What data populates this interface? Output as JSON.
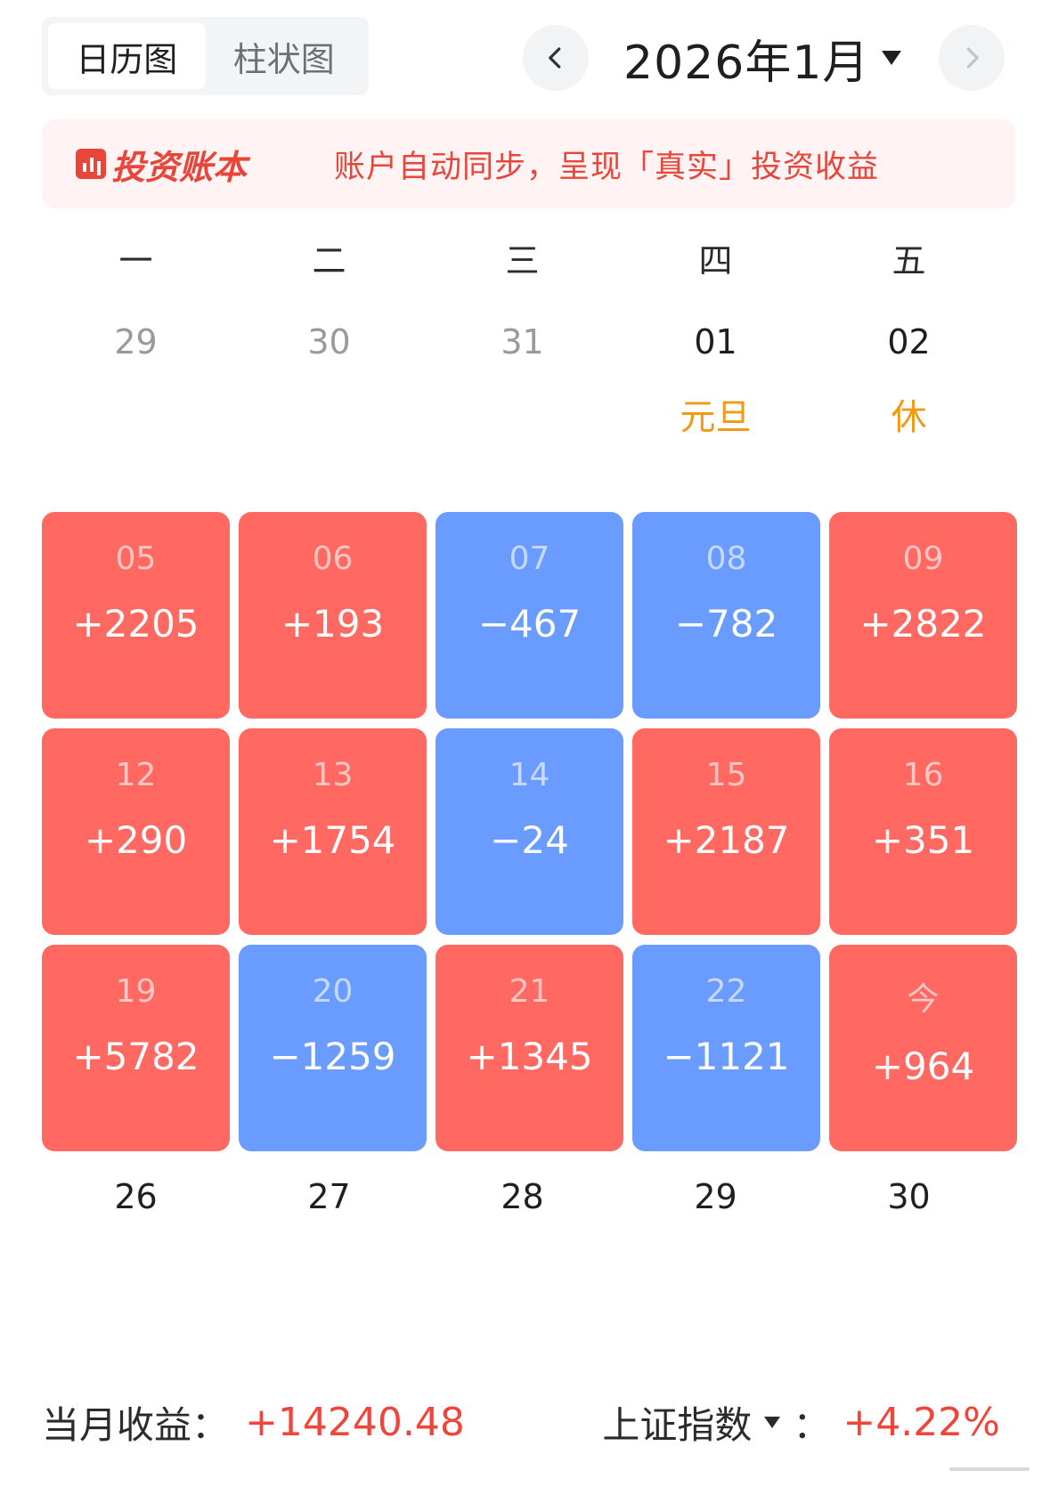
{
  "tabs": [
    {
      "label": "日历图",
      "active": true
    },
    {
      "label": "柱状图",
      "active": false
    }
  ],
  "header": {
    "month_label": "2026年1月",
    "prev_icon": "chevron-left-icon",
    "next_icon": "chevron-right-icon",
    "dropdown_icon": "caret-down-icon"
  },
  "banner": {
    "brand": "投资账本",
    "message": "账户自动同步，呈现「真实」投资收益"
  },
  "weekdays": [
    "一",
    "二",
    "三",
    "四",
    "五"
  ],
  "week0": {
    "days": [
      "29",
      "30",
      "31",
      "01",
      "02"
    ],
    "notes": [
      "",
      "",
      "",
      "元旦",
      "休"
    ]
  },
  "weeks": [
    [
      {
        "date": "05",
        "value": "+2205",
        "sign": "pos"
      },
      {
        "date": "06",
        "value": "+193",
        "sign": "pos"
      },
      {
        "date": "07",
        "value": "−467",
        "sign": "neg"
      },
      {
        "date": "08",
        "value": "−782",
        "sign": "neg"
      },
      {
        "date": "09",
        "value": "+2822",
        "sign": "pos"
      }
    ],
    [
      {
        "date": "12",
        "value": "+290",
        "sign": "pos"
      },
      {
        "date": "13",
        "value": "+1754",
        "sign": "pos"
      },
      {
        "date": "14",
        "value": "−24",
        "sign": "neg"
      },
      {
        "date": "15",
        "value": "+2187",
        "sign": "pos"
      },
      {
        "date": "16",
        "value": "+351",
        "sign": "pos"
      }
    ],
    [
      {
        "date": "19",
        "value": "+5782",
        "sign": "pos"
      },
      {
        "date": "20",
        "value": "−1259",
        "sign": "neg"
      },
      {
        "date": "21",
        "value": "+1345",
        "sign": "pos"
      },
      {
        "date": "22",
        "value": "−1121",
        "sign": "neg"
      },
      {
        "date": "今",
        "value": "+964",
        "sign": "pos"
      }
    ]
  ],
  "last_week": [
    "26",
    "27",
    "28",
    "29",
    "30"
  ],
  "footer": {
    "monthly_label": "当月收益：",
    "monthly_value": "+14240.48",
    "index_label": "上证指数",
    "index_sep": "：",
    "index_value": "+4.22%"
  },
  "colors": {
    "positive": "#ff6961",
    "negative": "#6a9bff",
    "accent": "#f0453b",
    "holiday": "#f29a18"
  }
}
